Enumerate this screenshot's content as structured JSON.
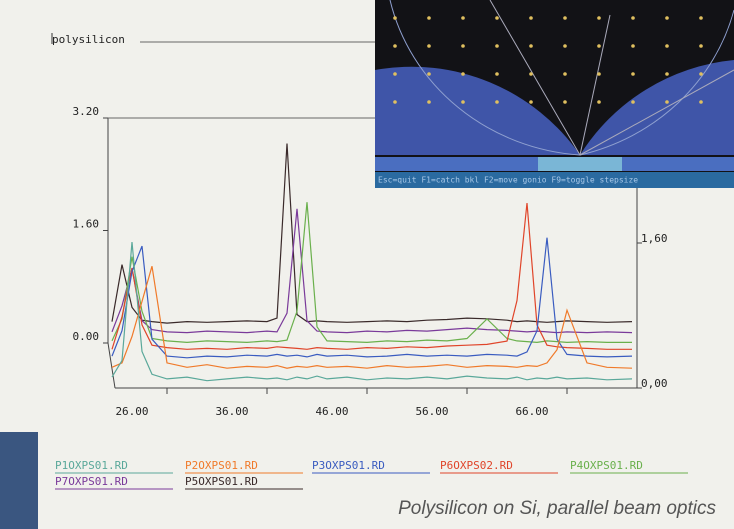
{
  "chart_data": {
    "type": "waterfall-line",
    "title": "polysilicon",
    "caption": "Polysilicon on Si, parallel beam optics",
    "x": [
      24.5,
      25.5,
      26.5,
      27.5,
      28.5,
      30,
      32,
      34,
      36,
      38,
      40,
      41,
      42,
      43,
      44,
      45,
      46,
      48,
      50,
      52,
      54,
      56,
      58,
      60,
      62,
      64,
      65,
      66,
      67,
      68,
      69,
      70,
      72,
      74,
      76.5
    ],
    "series": [
      {
        "name": "P1OXPS01.RD",
        "color": "#5aa89a",
        "values": [
          0.12,
          0.3,
          1.6,
          0.4,
          0.15,
          0.1,
          0.12,
          0.08,
          0.1,
          0.12,
          0.1,
          0.11,
          0.09,
          0.12,
          0.1,
          0.13,
          0.1,
          0.12,
          0.09,
          0.11,
          0.1,
          0.12,
          0.1,
          0.13,
          0.11,
          0.1,
          0.12,
          0.09,
          0.11,
          0.1,
          0.12,
          0.1,
          0.11,
          0.09,
          0.1
        ]
      },
      {
        "name": "P2OXPS01.RD",
        "color": "#f07a2a",
        "values": [
          0.15,
          0.2,
          0.5,
          0.9,
          1.3,
          0.2,
          0.15,
          0.18,
          0.14,
          0.16,
          0.15,
          0.17,
          0.14,
          0.16,
          0.15,
          0.17,
          0.15,
          0.16,
          0.14,
          0.17,
          0.15,
          0.16,
          0.18,
          0.15,
          0.17,
          0.16,
          0.15,
          0.17,
          0.16,
          0.2,
          0.35,
          0.8,
          0.2,
          0.15,
          0.14
        ]
      },
      {
        "name": "P3OXPS01.RD",
        "color": "#3a5cc0",
        "values": [
          0.2,
          0.5,
          1.2,
          1.5,
          0.4,
          0.2,
          0.18,
          0.2,
          0.19,
          0.21,
          0.2,
          0.22,
          0.2,
          0.21,
          0.19,
          0.22,
          0.2,
          0.21,
          0.19,
          0.2,
          0.22,
          0.2,
          0.21,
          0.2,
          0.22,
          0.21,
          0.2,
          0.25,
          0.5,
          1.6,
          0.4,
          0.22,
          0.2,
          0.19,
          0.2
        ]
      },
      {
        "name": "P6OXPS02.RD",
        "color": "#e0452a",
        "values": [
          0.2,
          0.6,
          1.2,
          0.5,
          0.25,
          0.22,
          0.2,
          0.21,
          0.2,
          0.22,
          0.21,
          0.23,
          0.22,
          0.21,
          0.2,
          0.22,
          0.21,
          0.2,
          0.22,
          0.21,
          0.23,
          0.22,
          0.24,
          0.25,
          0.26,
          0.3,
          0.8,
          2.0,
          0.5,
          0.25,
          0.23,
          0.22,
          0.21,
          0.2,
          0.2
        ]
      },
      {
        "name": "P4OXPS01.RD",
        "color": "#6ab04c",
        "values": [
          0.22,
          0.5,
          1.3,
          0.6,
          0.25,
          0.22,
          0.2,
          0.22,
          0.21,
          0.2,
          0.22,
          0.21,
          0.23,
          0.6,
          2.0,
          0.4,
          0.22,
          0.21,
          0.2,
          0.22,
          0.21,
          0.23,
          0.22,
          0.25,
          0.5,
          0.25,
          0.22,
          0.21,
          0.2,
          0.22,
          0.21,
          0.2,
          0.21,
          0.2,
          0.2
        ]
      },
      {
        "name": "P7OXPS01.RD",
        "color": "#7a3a9a",
        "values": [
          0.25,
          0.6,
          1.1,
          0.4,
          0.28,
          0.25,
          0.24,
          0.26,
          0.25,
          0.24,
          0.26,
          0.25,
          0.5,
          1.9,
          0.4,
          0.26,
          0.25,
          0.24,
          0.26,
          0.25,
          0.27,
          0.26,
          0.28,
          0.3,
          0.28,
          0.27,
          0.26,
          0.25,
          0.26,
          0.25,
          0.24,
          0.25,
          0.24,
          0.25,
          0.24
        ]
      },
      {
        "name": "P5OXPS01.RD",
        "color": "#3a2a2a",
        "values": [
          0.3,
          1.1,
          0.5,
          0.32,
          0.3,
          0.28,
          0.3,
          0.29,
          0.3,
          0.31,
          0.3,
          0.35,
          2.8,
          0.4,
          0.3,
          0.31,
          0.3,
          0.29,
          0.3,
          0.31,
          0.3,
          0.32,
          0.33,
          0.35,
          0.34,
          0.32,
          0.3,
          0.31,
          0.3,
          0.29,
          0.3,
          0.31,
          0.3,
          0.29,
          0.3
        ]
      }
    ],
    "xlim": [
      24,
      77
    ],
    "xticks": [
      {
        "value": 26,
        "label": "26.00"
      },
      {
        "value": 36,
        "label": "36.00"
      },
      {
        "value": 46,
        "label": "46.00"
      },
      {
        "value": 56,
        "label": "56.00"
      },
      {
        "value": 66,
        "label": "66.00"
      }
    ],
    "ylim": [
      0,
      3.2
    ],
    "yticks": [
      {
        "value": 0,
        "label": "0.00"
      },
      {
        "value": 1.6,
        "label": "1.60"
      },
      {
        "value": 3.2,
        "label": "3.20"
      }
    ],
    "y2lim": [
      0,
      3.2
    ],
    "y2ticks": [
      {
        "value": 0,
        "label": "0,00"
      },
      {
        "value": 1.6,
        "label": "1,60"
      }
    ]
  },
  "inset": {
    "status_bar": "Esc=quit F1=catch bkl F2=move gonio F9=toggle stepsize"
  }
}
